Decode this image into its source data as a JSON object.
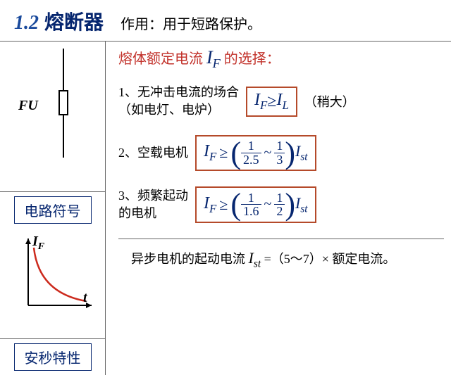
{
  "header": {
    "number": "1.2",
    "title": "熔断器",
    "desc": "作用：用于短路保护。",
    "number_color": "#1a4a9c",
    "title_color": "#06266f"
  },
  "left": {
    "symbol": {
      "fu_text": "FU",
      "line_color": "#000000",
      "rect_w": 12,
      "rect_h": 34,
      "label": "电路符号",
      "label_color": "#06266f"
    },
    "curve": {
      "y_label": "I",
      "y_sub": "F",
      "x_label": "t",
      "axis_color": "#000000",
      "curve_color": "#cc2a1d",
      "label": "安秒特性",
      "label_color": "#06266f"
    }
  },
  "right": {
    "subhead_prefix": "熔体额定电流",
    "subhead_var": "I",
    "subhead_sub": "F",
    "subhead_suffix": "的选择：",
    "subhead_color": "#c2322b",
    "eq_color": "#06266f",
    "box_border": "#b54a2a",
    "rows": [
      {
        "label_l1": "1、无冲击电流的场合",
        "label_l2": "（如电灯、电炉）",
        "eq_simple": {
          "lhs": "I",
          "lsub": "F",
          "op": "≥",
          "rhs": "I",
          "rsub": "L"
        },
        "note": "（稍大）"
      },
      {
        "label_l1": "2、空载电机",
        "eq_frac": {
          "n1": "1",
          "d1": "2.5",
          "n2": "1",
          "d2": "3",
          "rhs": "I",
          "rsub": "st"
        }
      },
      {
        "label_l1": "3、频繁起动",
        "label_l2": "     的电机",
        "eq_frac": {
          "n1": "1",
          "d1": "1.6",
          "n2": "1",
          "d2": "2",
          "rhs": "I",
          "rsub": "st"
        }
      }
    ],
    "footer_pre": "异步电机的起动电流",
    "footer_var": "I",
    "footer_sub": "st",
    "footer_post": "=（5～7）× 额定电流。"
  }
}
